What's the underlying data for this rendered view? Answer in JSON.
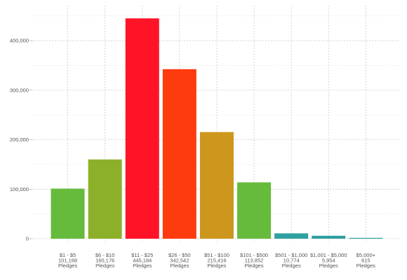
{
  "chart_data": {
    "type": "bar",
    "title": "",
    "xlabel": "",
    "ylabel": "",
    "ylim": [
      0,
      460000
    ],
    "yticks": [
      0,
      100000,
      200000,
      300000,
      400000
    ],
    "ytick_labels": [
      "0",
      "100,000",
      "200,000",
      "300,000",
      "400,000"
    ],
    "grid": true,
    "categories": [
      {
        "range": "$1 - $5",
        "count": "101,168",
        "unit": "Pledges"
      },
      {
        "range": "$6 - $10",
        "count": "160,176",
        "unit": "Pledges"
      },
      {
        "range": "$11 - $25",
        "count": "445,184",
        "unit": "Pledges"
      },
      {
        "range": "$26 - $50",
        "count": "342,542",
        "unit": "Pledges"
      },
      {
        "range": "$51 - $100",
        "count": "215,416",
        "unit": "Pledges"
      },
      {
        "range": "$101 - $500",
        "count": "113,852",
        "unit": "Pledges"
      },
      {
        "range": "$501 - $1,000",
        "count": "10,774",
        "unit": "Pledges"
      },
      {
        "range": "$1,001 - $5,000",
        "count": "5,954",
        "unit": "Pledges"
      },
      {
        "range": "$5,000+",
        "count": "615",
        "unit": "Pledges"
      }
    ],
    "values": [
      101168,
      160176,
      445184,
      342542,
      215416,
      113852,
      10774,
      5954,
      615
    ],
    "colors": [
      "#66bb3d",
      "#8db02b",
      "#fe1426",
      "#fe3a0f",
      "#cd961c",
      "#66bb3d",
      "#2fa0a0",
      "#2fa0a0",
      "#2fa0a0"
    ]
  }
}
